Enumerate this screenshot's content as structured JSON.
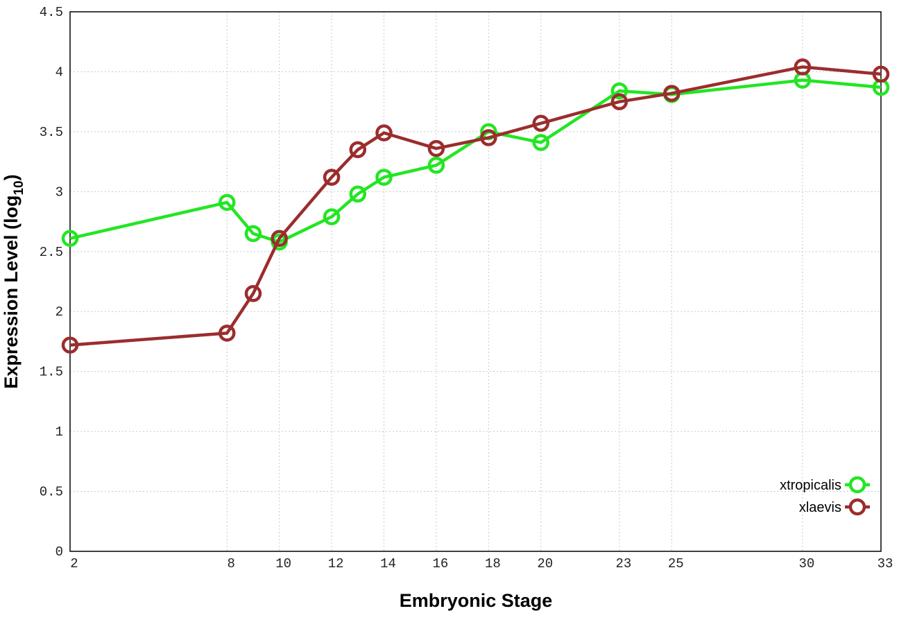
{
  "chart_data": {
    "type": "line",
    "x_label": "Embryonic Stage",
    "y_label": {
      "text": "Expression Level (log",
      "subscript": "10",
      "suffix": ")"
    },
    "x": [
      2,
      8,
      9,
      10,
      12,
      13,
      14,
      16,
      18,
      20,
      23,
      25,
      30,
      33
    ],
    "series": [
      {
        "name": "xtropicalis",
        "color": "#22e622",
        "values": [
          2.61,
          2.91,
          2.65,
          2.58,
          2.79,
          2.98,
          3.12,
          3.22,
          3.5,
          3.41,
          3.84,
          3.81,
          3.93,
          3.87
        ]
      },
      {
        "name": "xlaevis",
        "color": "#9b2d2d",
        "values": [
          1.72,
          1.82,
          2.15,
          2.61,
          3.12,
          3.35,
          3.49,
          3.36,
          3.45,
          3.57,
          3.75,
          3.82,
          4.04,
          3.98
        ]
      }
    ],
    "xlim": [
      2,
      33
    ],
    "xticks": [
      2,
      8,
      10,
      12,
      14,
      16,
      18,
      20,
      23,
      25,
      30,
      33
    ],
    "ylim": [
      0,
      4.5
    ],
    "yticks": [
      0,
      0.5,
      1,
      1.5,
      2,
      2.5,
      3,
      3.5,
      4,
      4.5
    ],
    "grid": true,
    "legend": "bottom-right"
  }
}
